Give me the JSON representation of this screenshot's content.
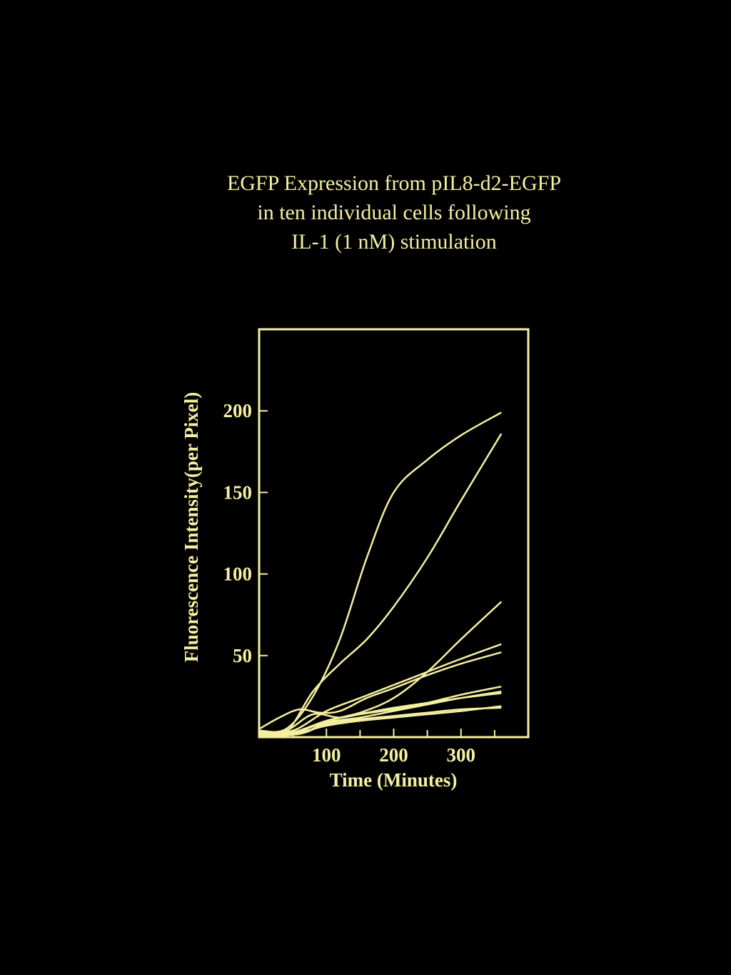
{
  "title_lines": [
    "EGFP Expression from pIL8-d2-EGFP",
    "in ten individual cells following",
    "IL-1 (1 nM) stimulation"
  ],
  "colors": {
    "background": "#000000",
    "foreground": "#f5f0a0"
  },
  "chart_data": {
    "type": "line",
    "title": "EGFP Expression from pIL8-d2-EGFP in ten individual cells following IL-1 (1 nM) stimulation",
    "xlabel": "Time (Minutes)",
    "ylabel": "Fluorescence Intensity(per Pixel)",
    "xlim": [
      0,
      400
    ],
    "ylim": [
      0,
      250
    ],
    "x_ticks": [
      100,
      200,
      300
    ],
    "x_tick_labels": [
      "100",
      "200",
      "300"
    ],
    "x_minor_ticks": [
      50,
      150,
      250,
      350
    ],
    "y_ticks": [
      50,
      100,
      150,
      200
    ],
    "y_tick_labels": [
      "50",
      "100",
      "150",
      "200"
    ],
    "grid": false,
    "legend": "none",
    "series": [
      {
        "points": [
          [
            0,
            4
          ],
          [
            40,
            5
          ],
          [
            80,
            25
          ],
          [
            120,
            60
          ],
          [
            160,
            110
          ],
          [
            200,
            150
          ],
          [
            250,
            170
          ],
          [
            300,
            185
          ],
          [
            360,
            199
          ]
        ]
      },
      {
        "points": [
          [
            0,
            2
          ],
          [
            40,
            3
          ],
          [
            80,
            28
          ],
          [
            120,
            45
          ],
          [
            160,
            60
          ],
          [
            200,
            80
          ],
          [
            250,
            110
          ],
          [
            300,
            145
          ],
          [
            360,
            186
          ]
        ]
      },
      {
        "points": [
          [
            0,
            1
          ],
          [
            50,
            2
          ],
          [
            100,
            10
          ],
          [
            150,
            15
          ],
          [
            200,
            24
          ],
          [
            250,
            40
          ],
          [
            300,
            60
          ],
          [
            360,
            83
          ]
        ]
      },
      {
        "points": [
          [
            0,
            3
          ],
          [
            50,
            4
          ],
          [
            100,
            16
          ],
          [
            150,
            24
          ],
          [
            200,
            32
          ],
          [
            250,
            40
          ],
          [
            300,
            48
          ],
          [
            360,
            57
          ]
        ]
      },
      {
        "points": [
          [
            0,
            5
          ],
          [
            30,
            12
          ],
          [
            60,
            17
          ],
          [
            90,
            15
          ],
          [
            120,
            16
          ],
          [
            160,
            24
          ],
          [
            200,
            30
          ],
          [
            250,
            38
          ],
          [
            300,
            45
          ],
          [
            360,
            52
          ]
        ]
      },
      {
        "points": [
          [
            0,
            2
          ],
          [
            50,
            3
          ],
          [
            100,
            10
          ],
          [
            150,
            14
          ],
          [
            200,
            17
          ],
          [
            250,
            21
          ],
          [
            300,
            26
          ],
          [
            360,
            31
          ]
        ]
      },
      {
        "points": [
          [
            0,
            1
          ],
          [
            60,
            2
          ],
          [
            100,
            9
          ],
          [
            150,
            12
          ],
          [
            200,
            16
          ],
          [
            250,
            20
          ],
          [
            300,
            24
          ],
          [
            360,
            28
          ]
        ]
      },
      {
        "points": [
          [
            0,
            3
          ],
          [
            40,
            4
          ],
          [
            80,
            14
          ],
          [
            120,
            12
          ],
          [
            160,
            15
          ],
          [
            200,
            18
          ],
          [
            250,
            21
          ],
          [
            300,
            24
          ],
          [
            360,
            27
          ]
        ]
      },
      {
        "points": [
          [
            0,
            2
          ],
          [
            50,
            2
          ],
          [
            100,
            7
          ],
          [
            150,
            10
          ],
          [
            200,
            12
          ],
          [
            250,
            14
          ],
          [
            300,
            16
          ],
          [
            360,
            19
          ]
        ]
      },
      {
        "points": [
          [
            0,
            1
          ],
          [
            60,
            2
          ],
          [
            100,
            8
          ],
          [
            150,
            11
          ],
          [
            200,
            13
          ],
          [
            250,
            15
          ],
          [
            300,
            17
          ],
          [
            360,
            18
          ]
        ]
      }
    ]
  }
}
